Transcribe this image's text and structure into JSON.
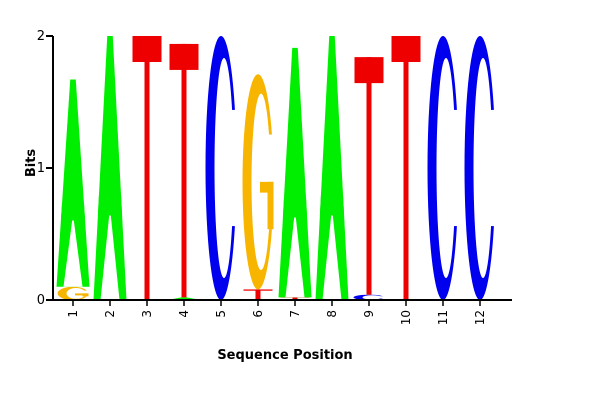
{
  "chart_data": {
    "type": "sequence-logo",
    "xlabel": "Sequence Position",
    "ylabel": "Bits",
    "ylim": [
      0,
      2
    ],
    "y_ticks": [
      "0",
      "1",
      "2"
    ],
    "positions": [
      "1",
      "2",
      "3",
      "4",
      "5",
      "6",
      "7",
      "8",
      "9",
      "10",
      "11",
      "12"
    ],
    "colors": {
      "A": "#00ee00",
      "C": "#0000ee",
      "G": "#f7b500",
      "T": "#ee0000"
    },
    "columns": [
      {
        "position": "1",
        "letters": [
          {
            "letter": "G",
            "bits": 0.1
          },
          {
            "letter": "A",
            "bits": 1.57
          }
        ]
      },
      {
        "position": "2",
        "letters": [
          {
            "letter": "A",
            "bits": 2.0
          }
        ]
      },
      {
        "position": "3",
        "letters": [
          {
            "letter": "T",
            "bits": 2.0
          }
        ]
      },
      {
        "position": "4",
        "letters": [
          {
            "letter": "A",
            "bits": 0.02
          },
          {
            "letter": "T",
            "bits": 1.92
          }
        ]
      },
      {
        "position": "5",
        "letters": [
          {
            "letter": "C",
            "bits": 2.0
          }
        ]
      },
      {
        "position": "6",
        "letters": [
          {
            "letter": "T",
            "bits": 0.08
          },
          {
            "letter": "G",
            "bits": 1.63
          }
        ]
      },
      {
        "position": "7",
        "letters": [
          {
            "letter": "T",
            "bits": 0.02
          },
          {
            "letter": "A",
            "bits": 1.89
          }
        ]
      },
      {
        "position": "8",
        "letters": [
          {
            "letter": "A",
            "bits": 2.0
          }
        ]
      },
      {
        "position": "9",
        "letters": [
          {
            "letter": "C",
            "bits": 0.04
          },
          {
            "letter": "T",
            "bits": 1.8
          }
        ]
      },
      {
        "position": "10",
        "letters": [
          {
            "letter": "T",
            "bits": 2.0
          }
        ]
      },
      {
        "position": "11",
        "letters": [
          {
            "letter": "C",
            "bits": 2.0
          }
        ]
      },
      {
        "position": "12",
        "letters": [
          {
            "letter": "C",
            "bits": 2.0
          }
        ]
      }
    ]
  }
}
